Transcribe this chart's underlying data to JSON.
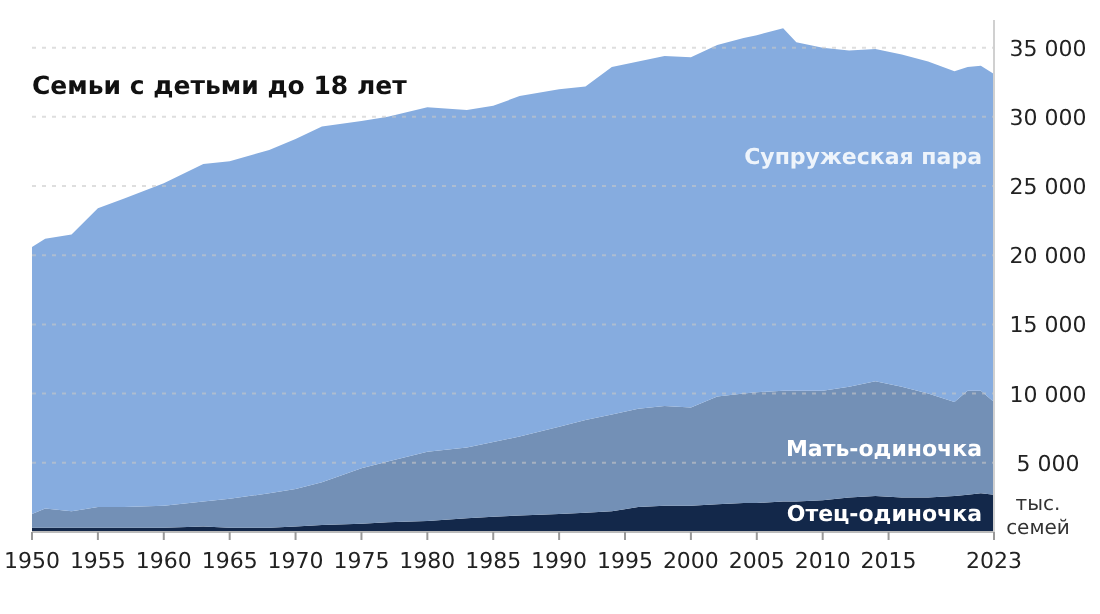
{
  "chart_data": {
    "type": "area",
    "stacked": true,
    "title": "Семьи с детьми до 18 лет",
    "ylabel": "тыс. семей",
    "x": [
      1950,
      1951,
      1953,
      1955,
      1957,
      1960,
      1963,
      1965,
      1968,
      1970,
      1972,
      1975,
      1977,
      1980,
      1983,
      1985,
      1987,
      1990,
      1992,
      1994,
      1996,
      1998,
      2000,
      2002,
      2004,
      2005,
      2007,
      2008,
      2010,
      2012,
      2014,
      2016,
      2018,
      2020,
      2021,
      2022,
      2023
    ],
    "series": [
      {
        "name": "Отец-одиночка",
        "color": "#13284a",
        "values": [
          300,
          300,
          300,
          300,
          300,
          300,
          400,
          300,
          300,
          400,
          500,
          600,
          700,
          800,
          1000,
          1100,
          1200,
          1300,
          1400,
          1500,
          1800,
          1900,
          1900,
          2000,
          2100,
          2100,
          2200,
          2200,
          2300,
          2500,
          2600,
          2500,
          2500,
          2600,
          2700,
          2800,
          2700
        ]
      },
      {
        "name": "Мать-одиночка",
        "color": "#7390b6",
        "values": [
          1000,
          1400,
          1200,
          1500,
          1500,
          1600,
          1800,
          2100,
          2500,
          2700,
          3100,
          4000,
          4400,
          5000,
          5100,
          5400,
          5700,
          6300,
          6700,
          7000,
          7100,
          7200,
          7100,
          7800,
          7900,
          8000,
          8000,
          8000,
          7900,
          8000,
          8300,
          8000,
          7500,
          6800,
          7500,
          7400,
          6700
        ]
      },
      {
        "name": "Супружеская пара",
        "color": "#86acdf",
        "values": [
          19300,
          19500,
          20000,
          21600,
          22300,
          23300,
          24400,
          24400,
          24800,
          25300,
          25700,
          25100,
          24900,
          24900,
          24400,
          24300,
          24600,
          24400,
          24100,
          25100,
          25100,
          25300,
          25300,
          25400,
          25700,
          25800,
          26200,
          25200,
          24800,
          24300,
          24000,
          24000,
          24000,
          23900,
          23400,
          23500,
          23700
        ]
      }
    ],
    "xlim": [
      1950,
      2023
    ],
    "xticks": [
      1950,
      1955,
      1960,
      1965,
      1970,
      1975,
      1980,
      1985,
      1990,
      1995,
      2000,
      2005,
      2010,
      2015,
      2023
    ],
    "ylim": [
      0,
      37000
    ],
    "yticks": [
      {
        "value": 5000,
        "label": "5 000"
      },
      {
        "value": 10000,
        "label": "10 000"
      },
      {
        "value": 15000,
        "label": "15 000"
      },
      {
        "value": 20000,
        "label": "20 000"
      },
      {
        "value": 25000,
        "label": "25 000"
      },
      {
        "value": 30000,
        "label": "30 000"
      },
      {
        "value": 35000,
        "label": "35 000"
      }
    ],
    "grid": "y"
  }
}
